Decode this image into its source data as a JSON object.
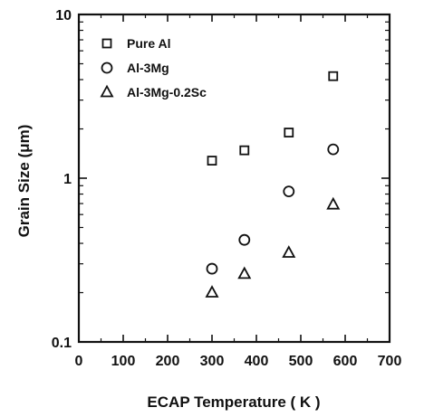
{
  "chart_data": {
    "type": "scatter",
    "title": "",
    "xlabel": "ECAP Temperature  ( K )",
    "ylabel": "Grain Size  (μm)",
    "xlim": [
      0,
      700
    ],
    "ylim": [
      0.1,
      10
    ],
    "y_scale": "log",
    "grid": false,
    "legend_position": "top-left",
    "x_ticks": [
      0,
      100,
      200,
      300,
      400,
      500,
      600,
      700
    ],
    "y_ticks": [
      0.1,
      1,
      10
    ],
    "series": [
      {
        "name": "Pure Al",
        "marker": "square",
        "x": [
          300,
          373,
          473,
          573
        ],
        "y": [
          1.28,
          1.48,
          1.9,
          4.2
        ]
      },
      {
        "name": "Al-3Mg",
        "marker": "circle",
        "x": [
          300,
          373,
          473,
          573
        ],
        "y": [
          0.28,
          0.42,
          0.83,
          1.5
        ]
      },
      {
        "name": "Al-3Mg-0.2Sc",
        "marker": "triangle",
        "x": [
          300,
          373,
          473,
          573
        ],
        "y": [
          0.2,
          0.26,
          0.35,
          0.69
        ]
      }
    ]
  }
}
